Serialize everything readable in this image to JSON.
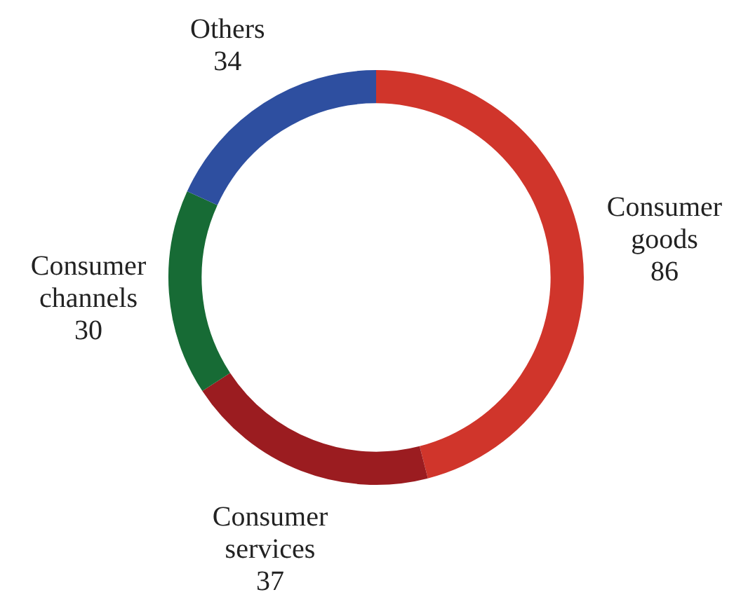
{
  "chart_data": {
    "type": "donut",
    "categories": [
      "Consumer goods",
      "Consumer services",
      "Consumer channels",
      "Others"
    ],
    "values": [
      86,
      37,
      30,
      34
    ],
    "colors": [
      "#d0352b",
      "#9b1c20",
      "#176b35",
      "#2e4fa0"
    ],
    "data_labels": true,
    "legend": false
  }
}
